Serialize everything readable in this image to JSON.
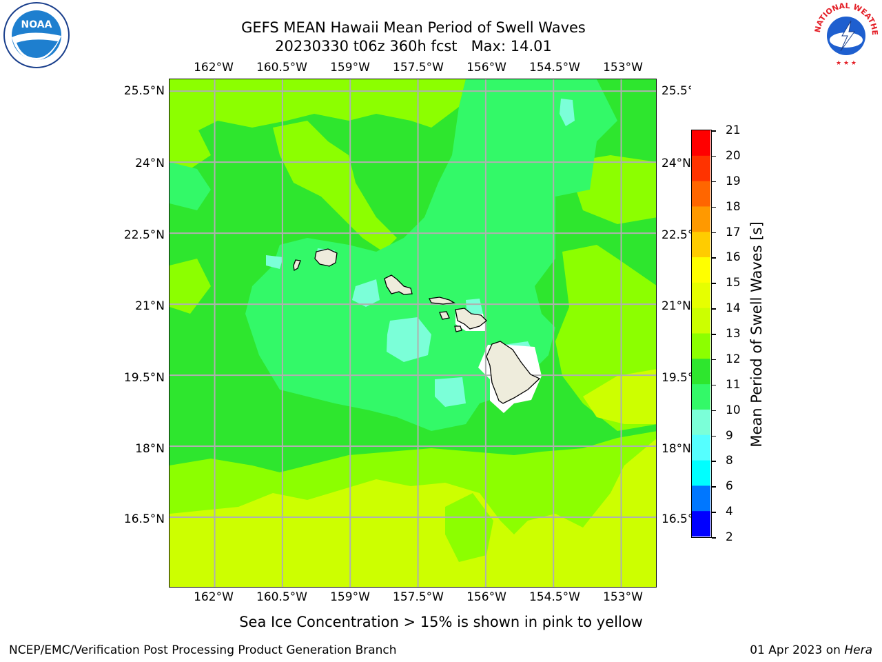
{
  "header": {
    "title_line1": "GEFS MEAN Hawaii Mean Period of Swell Waves",
    "title_line2": "20230330 t06z 360h fcst   Max: 14.01"
  },
  "logos": {
    "left": {
      "name": "noaa-logo",
      "text": "NOAA",
      "ring_text": "NATIONAL OCEANIC AND ATMOSPHERIC ADMINISTRATION · U.S. DEPARTMENT OF COMMERCE"
    },
    "right": {
      "name": "nws-logo",
      "ring_text": "NATIONAL WEATHER SERVICE"
    }
  },
  "map": {
    "lon_labels": [
      "162°W",
      "160.5°W",
      "159°W",
      "157.5°W",
      "156°W",
      "154.5°W",
      "153°W"
    ],
    "lat_labels": [
      "25.5°N",
      "24°N",
      "22.5°N",
      "21°N",
      "19.5°N",
      "18°N",
      "16.5°N"
    ],
    "lon_range": [
      -163.0,
      -152.2
    ],
    "lat_range": [
      15.0,
      25.75
    ],
    "lon_ticks": [
      -162,
      -160.5,
      -159,
      -157.5,
      -156,
      -154.5,
      -153
    ],
    "lat_ticks": [
      25.5,
      24,
      22.5,
      21,
      19.5,
      18,
      16.5
    ],
    "grid": true,
    "colors": {
      "land": "#eeecdc",
      "ocean_11_12": "#2ee62e",
      "ocean_12_13": "#8cff00",
      "ocean_13_14": "#cdff00",
      "ocean_10_11": "#33f968",
      "ocean_9_10": "#7bffd8"
    }
  },
  "colorbar": {
    "label": "Mean Period of Swell Waves [s]",
    "levels": [
      "21",
      "20",
      "19",
      "18",
      "17",
      "16",
      "15",
      "14",
      "13",
      "12",
      "11",
      "10",
      "9",
      "8",
      "6",
      "4",
      "2"
    ],
    "colors": [
      "#ff0000",
      "#ff3300",
      "#ff6600",
      "#ff9900",
      "#ffcc00",
      "#ffff00",
      "#e6ff00",
      "#ccff00",
      "#8cff00",
      "#2ee62e",
      "#33f968",
      "#7bffd8",
      "#55ffff",
      "#00ffff",
      "#0077ff",
      "#0000ff"
    ]
  },
  "caption": "Sea Ice Concentration > 15% is shown in pink to yellow",
  "footer": {
    "left": "NCEP/EMC/Verification Post Processing Product Generation Branch",
    "right_date": "01 Apr 2023 on ",
    "right_host": "Hera"
  }
}
